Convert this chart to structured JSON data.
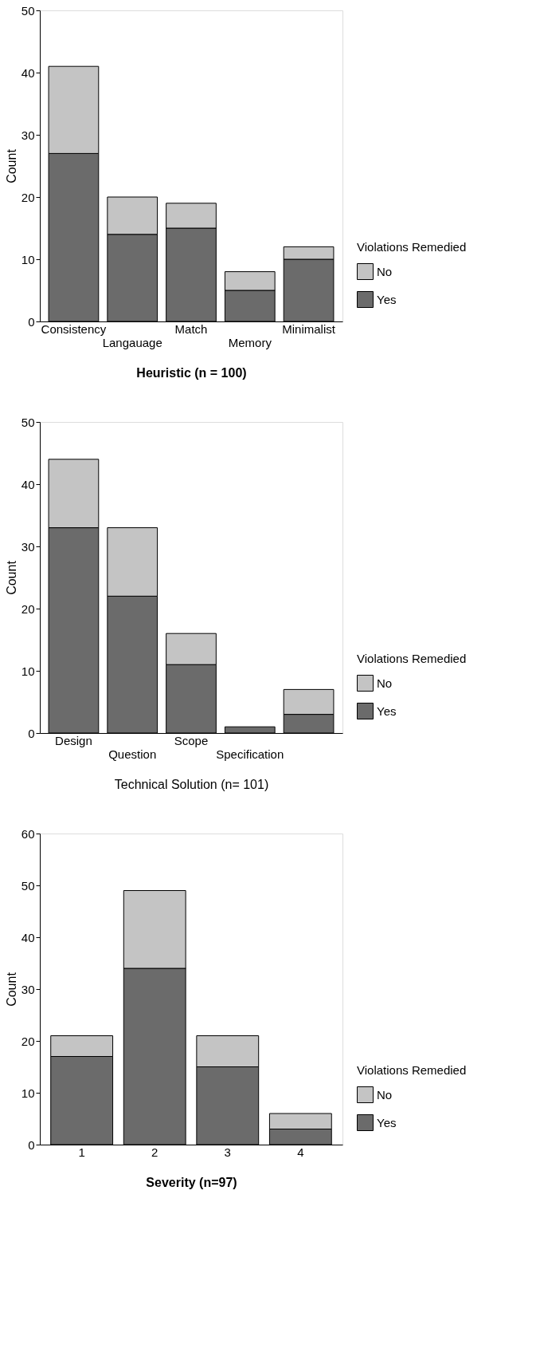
{
  "chart_data": [
    {
      "type": "bar",
      "stacked": true,
      "xlabel": "Heuristic (n = 100)",
      "ylabel": "Count",
      "legend_title": "Violations Remedied",
      "legend": "bottom right",
      "grid": false,
      "categories": [
        "Consistency",
        "Langauage",
        "Match",
        "Memory",
        "Minimalist"
      ],
      "ylim": [
        0,
        50
      ],
      "yticks": [
        0,
        10,
        20,
        30,
        40,
        50
      ],
      "series": [
        {
          "name": "Yes",
          "color": "#6b6b6b",
          "values": [
            27,
            14,
            15,
            5,
            10
          ]
        },
        {
          "name": "No",
          "color": "#c4c4c4",
          "values": [
            14,
            6,
            4,
            3,
            2
          ]
        }
      ]
    },
    {
      "type": "bar",
      "stacked": true,
      "xlabel": "Technical Solution (n= 101)",
      "ylabel": "Count",
      "legend_title": "Violations Remedied",
      "legend": "bottom right",
      "grid": false,
      "categories": [
        "Design",
        "Question",
        "Scope",
        "Specification",
        null
      ],
      "ylim": [
        0,
        50
      ],
      "yticks": [
        0,
        10,
        20,
        30,
        40,
        50
      ],
      "series": [
        {
          "name": "Yes",
          "color": "#6b6b6b",
          "values": [
            33,
            22,
            11,
            1,
            3
          ]
        },
        {
          "name": "No",
          "color": "#c4c4c4",
          "values": [
            11,
            11,
            5,
            0,
            4
          ]
        }
      ]
    },
    {
      "type": "bar",
      "stacked": true,
      "xlabel": "Severity (n=97)",
      "ylabel": "Count",
      "legend_title": "Violations Remedied",
      "legend": "bottom right",
      "grid": false,
      "categories": [
        "1",
        "2",
        "3",
        "4"
      ],
      "ylim": [
        0,
        60
      ],
      "yticks": [
        0,
        10,
        20,
        30,
        40,
        50,
        60
      ],
      "series": [
        {
          "name": "Yes",
          "color": "#6b6b6b",
          "values": [
            17,
            34,
            15,
            3
          ]
        },
        {
          "name": "No",
          "color": "#c4c4c4",
          "values": [
            4,
            15,
            6,
            3
          ]
        }
      ]
    }
  ]
}
